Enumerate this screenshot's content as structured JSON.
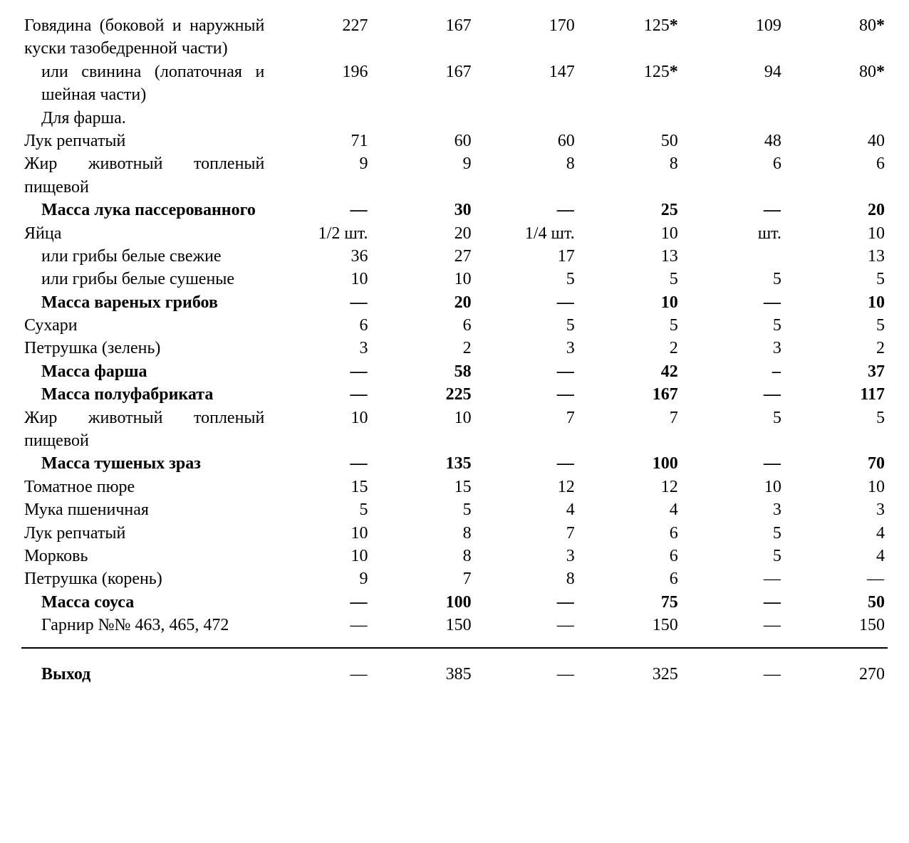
{
  "table": {
    "type": "table",
    "font_family": "Times New Roman",
    "font_size_pt": 18,
    "text_color": "#000000",
    "background_color": "#ffffff",
    "rule_color": "#000000",
    "columns": [
      {
        "key": "label",
        "width_pct": 29,
        "align": "left"
      },
      {
        "key": "c1",
        "width_pct": 11.8,
        "align": "right"
      },
      {
        "key": "c2",
        "width_pct": 11.8,
        "align": "right"
      },
      {
        "key": "c3",
        "width_pct": 11.8,
        "align": "right"
      },
      {
        "key": "c4",
        "width_pct": 11.8,
        "align": "right"
      },
      {
        "key": "c5",
        "width_pct": 11.8,
        "align": "right"
      },
      {
        "key": "c6",
        "width_pct": 11.8,
        "align": "right"
      }
    ],
    "rows": [
      {
        "label": "Говядина (боковой и наружный куски тазобедренной части)",
        "indent": false,
        "bold": false,
        "c1": "227",
        "c2": "167",
        "c3": "170",
        "c4": "125",
        "c4_ast": true,
        "c5": "109",
        "c6": "80",
        "c6_ast": true
      },
      {
        "label": "или свинина (лопаточная и шейная части)",
        "indent": true,
        "bold": false,
        "c1": "196",
        "c2": "167",
        "c3": "147",
        "c4": "125",
        "c4_ast": true,
        "c5": "94",
        "c6": "80",
        "c6_ast": true
      },
      {
        "label": "Для фарша.",
        "indent": true,
        "bold": false,
        "c1": "",
        "c2": "",
        "c3": "",
        "c4": "",
        "c5": "",
        "c6": ""
      },
      {
        "label": "Лук репчатый",
        "indent": false,
        "bold": false,
        "c1": "71",
        "c2": "60",
        "c3": "60",
        "c4": "50",
        "c5": "48",
        "c6": "40"
      },
      {
        "label": "Жир животный топленый пищевой",
        "indent": false,
        "bold": false,
        "c1": "9",
        "c2": "9",
        "c3": "8",
        "c4": "8",
        "c5": "6",
        "c6": "6"
      },
      {
        "label": "Масса лука пассерованного",
        "indent": true,
        "bold": true,
        "c1": "—",
        "c2": "30",
        "c3": "—",
        "c4": "25",
        "c5": "—",
        "c6": "20"
      },
      {
        "label": "Яйца",
        "indent": false,
        "bold": false,
        "c1": "1/2 шт.",
        "c2": "20",
        "c3": "1/4 шт.",
        "c4": "10",
        "c5": "шт.",
        "c6": "10"
      },
      {
        "label": "или грибы белые свежие",
        "indent": true,
        "bold": false,
        "c1": "36",
        "c2": "27",
        "c3": "17",
        "c4": "13",
        "c5": "",
        "c6": "13"
      },
      {
        "label": "или грибы белые сушеные",
        "indent": true,
        "bold": false,
        "c1": "10",
        "c2": "10",
        "c3": "5",
        "c4": "5",
        "c5": "5",
        "c6": "5"
      },
      {
        "label": "Масса вареных грибов",
        "indent": true,
        "bold": true,
        "c1": "—",
        "c2": "20",
        "c3": "—",
        "c4": "10",
        "c5": "—",
        "c6": "10"
      },
      {
        "label": "Сухари",
        "indent": false,
        "bold": false,
        "c1": "6",
        "c2": "6",
        "c3": "5",
        "c4": "5",
        "c5": "5",
        "c6": "5"
      },
      {
        "label": "Петрушка (зелень)",
        "indent": false,
        "bold": false,
        "c1": "3",
        "c2": "2",
        "c3": "3",
        "c4": "2",
        "c5": "3",
        "c6": "2"
      },
      {
        "label": "Масса фарша",
        "indent": true,
        "bold": true,
        "c1": "—",
        "c2": "58",
        "c3": "—",
        "c4": "42",
        "c5": "–",
        "c6": "37"
      },
      {
        "label": "Масса полуфабриката",
        "indent": true,
        "bold": true,
        "c1": "—",
        "c2": "225",
        "c3": "—",
        "c4": "167",
        "c5": "—",
        "c6": "117"
      },
      {
        "label": "Жир животный топленый пищевой",
        "indent": false,
        "bold": false,
        "c1": "10",
        "c2": "10",
        "c3": "7",
        "c4": "7",
        "c5": "5",
        "c6": "5"
      },
      {
        "label": "Масса тушеных зраз",
        "indent": true,
        "bold": true,
        "c1": "—",
        "c2": "135",
        "c3": "—",
        "c4": "100",
        "c5": "—",
        "c6": "70"
      },
      {
        "label": "Томатное пюре",
        "indent": false,
        "bold": false,
        "c1": "15",
        "c2": "15",
        "c3": "12",
        "c4": "12",
        "c5": "10",
        "c6": "10"
      },
      {
        "label": "Мука пшеничная",
        "indent": false,
        "bold": false,
        "c1": "5",
        "c2": "5",
        "c3": "4",
        "c4": "4",
        "c5": "3",
        "c6": "3"
      },
      {
        "label": "Лук репчатый",
        "indent": false,
        "bold": false,
        "c1": "10",
        "c2": "8",
        "c3": "7",
        "c4": "6",
        "c5": "5",
        "c6": "4"
      },
      {
        "label": "Морковь",
        "indent": false,
        "bold": false,
        "c1": "10",
        "c2": "8",
        "c3": "3",
        "c4": "6",
        "c5": "5",
        "c6": "4"
      },
      {
        "label": "Петрушка (корень)",
        "indent": false,
        "bold": false,
        "c1": "9",
        "c2": "7",
        "c3": "8",
        "c4": "6",
        "c5": "—",
        "c6": "—"
      },
      {
        "label": "Масса соуса",
        "indent": true,
        "bold": true,
        "c1": "—",
        "c2": "100",
        "c3": "—",
        "c4": "75",
        "c5": "—",
        "c6": "50"
      },
      {
        "label": "Гарнир №№ 463, 465, 472",
        "indent": true,
        "bold": false,
        "c1": "—",
        "c2": "150",
        "c3": "—",
        "c4": "150",
        "c5": "—",
        "c6": "150"
      }
    ],
    "output_row": {
      "label": "Выход",
      "bold": true,
      "c1": "—",
      "c2": "385",
      "c3": "—",
      "c4": "325",
      "c5": "—",
      "c6": "270"
    }
  }
}
